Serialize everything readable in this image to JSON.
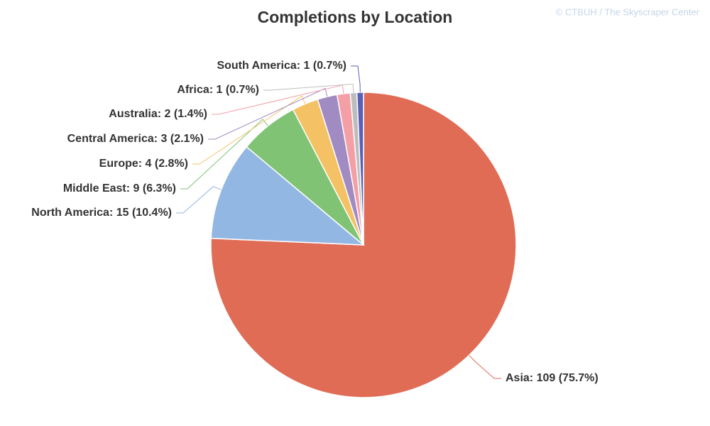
{
  "chart_data": {
    "type": "pie",
    "title": "Completions by Location",
    "credit": "© CTBUH / The Skyscraper Center",
    "values": [
      109,
      15,
      9,
      4,
      3,
      2,
      1,
      1
    ],
    "value_labels": [
      "Asia: 109 (75.7%)",
      "North America: 15 (10.4%)",
      "Middle East: 9 (6.3%)",
      "Europe: 4 (2.8%)",
      "Central America: 3 (2.1%)",
      "Australia: 2 (1.4%)",
      "Africa: 1 (0.7%)",
      "South America: 1 (0.7%)"
    ],
    "colors": [
      "#e06c55",
      "#93b7e3",
      "#80c375",
      "#f4c265",
      "#a08bc3",
      "#f49fa6",
      "#bdbdbd",
      "#5a5fb8"
    ]
  }
}
